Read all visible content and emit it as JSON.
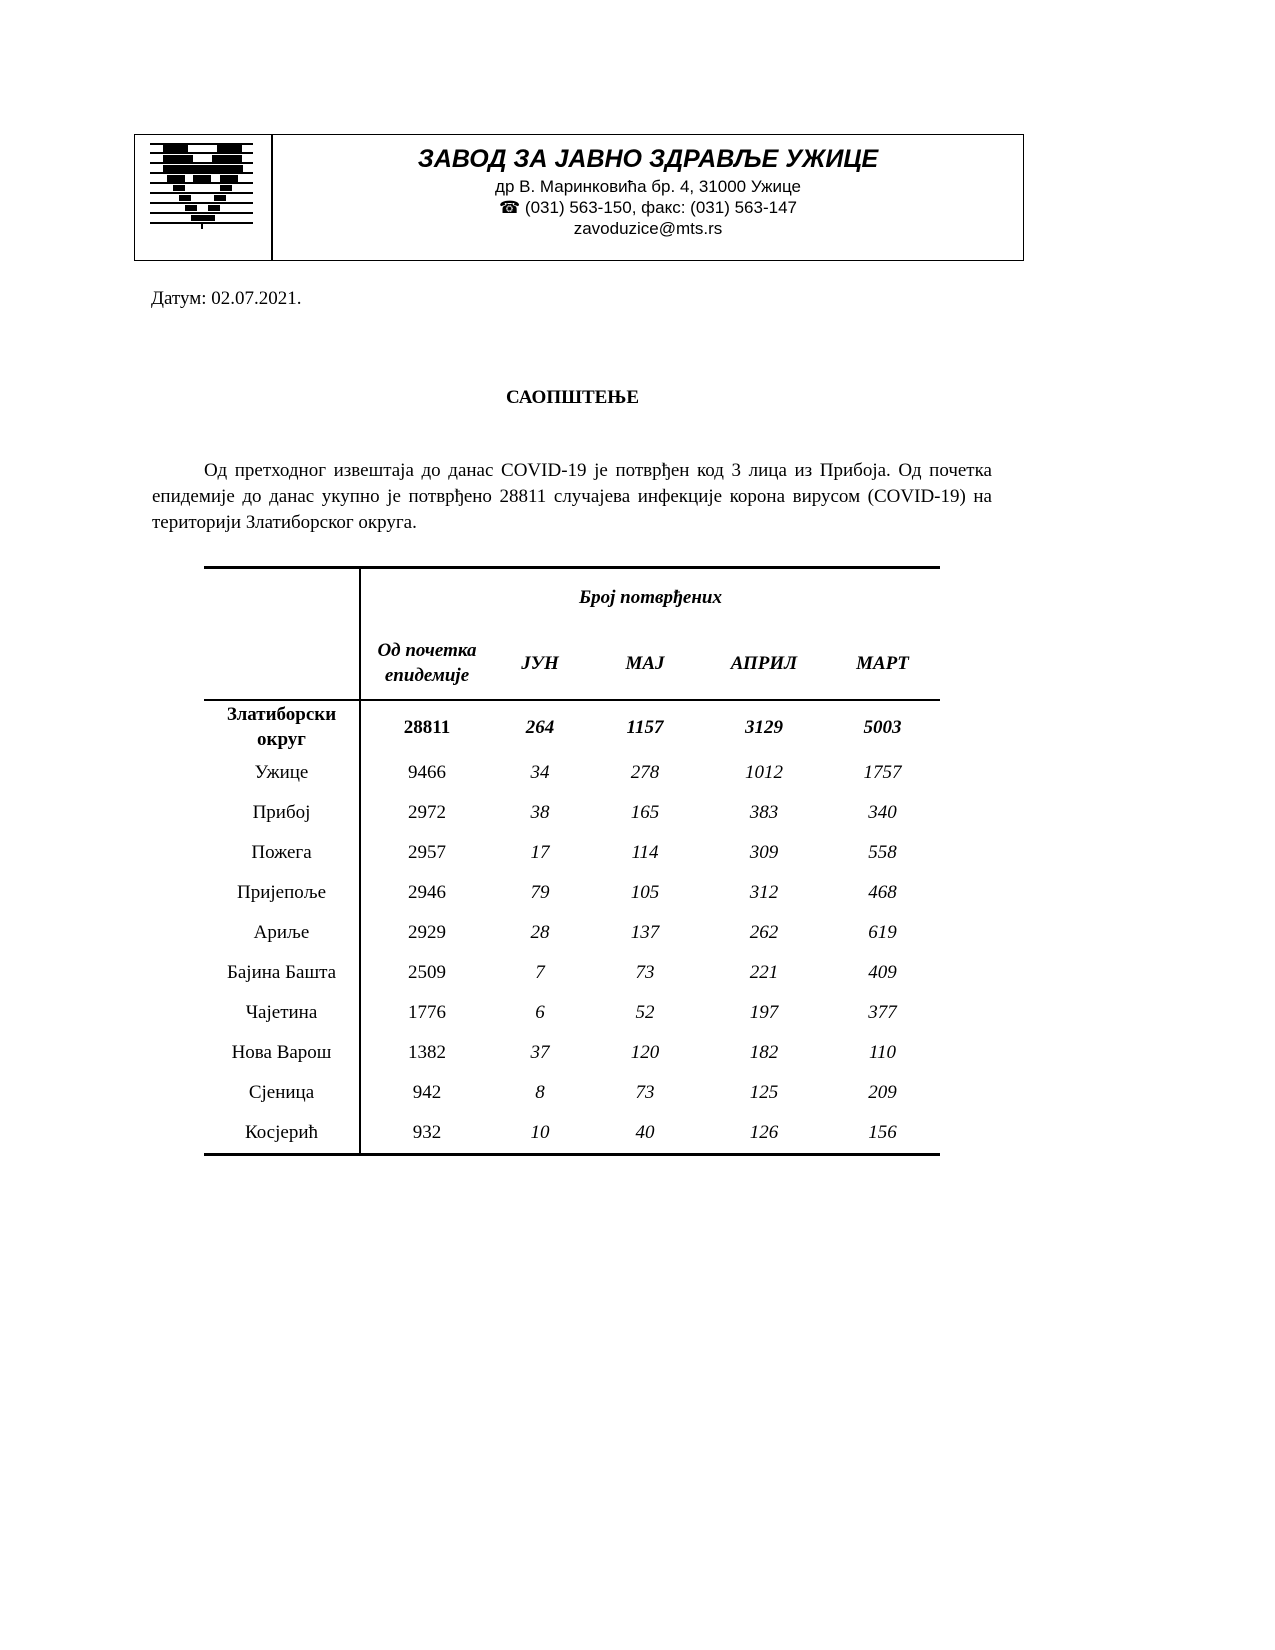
{
  "header": {
    "org": "ЗАВОД ЗА ЈАВНО ЗДРАВЉЕ УЖИЦЕ",
    "address": "др В. Маринковића бр. 4, 31000 Ужице",
    "phone": "☎ (031) 563-150, факс: (031) 563-147",
    "email": "zavoduzice@mts.rs",
    "logo_icon": "striped-heart-logo"
  },
  "date": "Датум: 02.07.2021.",
  "title": "САОПШТЕЊЕ",
  "paragraph": "Од претходног извештаја до данас COVID-19 је потврђен код 3 лица из Прибоја. Од почетка епидемије до данас укупно је потврђено 28811 случајева инфекције корона вирусом (COVID-19) на територији Златиборског округа.",
  "table": {
    "group_header": "Број потврђених",
    "columns": [
      "Од почетка епидемије",
      "ЈУН",
      "МАЈ",
      "АПРИЛ",
      "МАРТ"
    ],
    "rows": [
      [
        "Златиборски округ",
        "28811",
        "264",
        "1157",
        "3129",
        "5003"
      ],
      [
        "Ужице",
        "9466",
        "34",
        "278",
        "1012",
        "1757"
      ],
      [
        "Прибој",
        "2972",
        "38",
        "165",
        "383",
        "340"
      ],
      [
        "Пожега",
        "2957",
        "17",
        "114",
        "309",
        "558"
      ],
      [
        "Пријепоље",
        "2946",
        "79",
        "105",
        "312",
        "468"
      ],
      [
        "Ариље",
        "2929",
        "28",
        "137",
        "262",
        "619"
      ],
      [
        "Бајина Башта",
        "2509",
        "7",
        "73",
        "221",
        "409"
      ],
      [
        "Чајетина",
        "1776",
        "6",
        "52",
        "197",
        "377"
      ],
      [
        "Нова Варош",
        "1382",
        "37",
        "120",
        "182",
        "110"
      ],
      [
        "Сјеница",
        "942",
        "8",
        "73",
        "125",
        "209"
      ],
      [
        "Косјерић",
        "932",
        "10",
        "40",
        "126",
        "156"
      ]
    ]
  }
}
